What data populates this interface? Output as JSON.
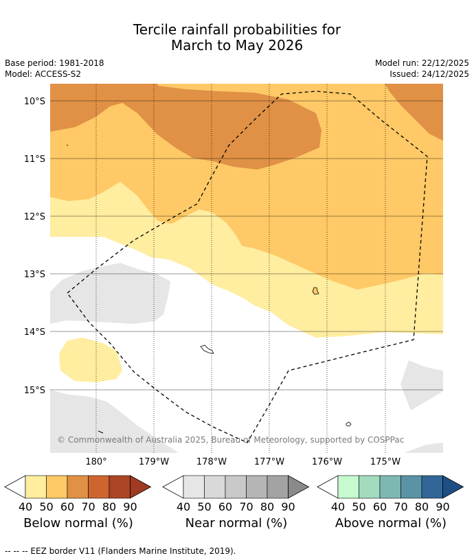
{
  "title_line1": "Tercile rainfall probabilities for",
  "title_line2": "March to May 2026",
  "base_period": "Base period: 1981-2018",
  "model": "Model: ACCESS-S2",
  "model_run": "Model run: 22/12/2025",
  "issued": "Issued: 24/12/2025",
  "copyright": "© Commonwealth of Australia 2025, Bureau of Meteorology, supported by COSPPac",
  "map": {
    "lat_labels": [
      "10°S",
      "11°S",
      "12°S",
      "13°S",
      "14°S",
      "15°S"
    ],
    "lon_labels": [
      "180°",
      "179°W",
      "178°W",
      "177°W",
      "176°W",
      "175°W"
    ]
  },
  "colorbars": [
    {
      "name": "below",
      "label": "Below normal (%)",
      "ticks": [
        "40",
        "50",
        "60",
        "70",
        "80",
        "90"
      ],
      "colors": [
        "#ffeda0",
        "#fec966",
        "#e09145",
        "#ce6531",
        "#ab4526",
        "#a13a22"
      ]
    },
    {
      "name": "near",
      "label": "Near normal (%)",
      "ticks": [
        "40",
        "50",
        "60",
        "70",
        "80",
        "90"
      ],
      "colors": [
        "#e6e6e6",
        "#d9d9d9",
        "#c9c9c9",
        "#b5b5b5",
        "#a3a3a3",
        "#8a8a8a"
      ]
    },
    {
      "name": "above",
      "label": "Above normal (%)",
      "ticks": [
        "40",
        "50",
        "60",
        "70",
        "80",
        "90"
      ],
      "colors": [
        "#c5fbce",
        "#a3dbbe",
        "#7eb8b2",
        "#5993a5",
        "#326696",
        "#1d4f85"
      ]
    }
  ],
  "footnote": "--  --  -- EEZ border V11 (Flanders Marine Institute, 2019)."
}
